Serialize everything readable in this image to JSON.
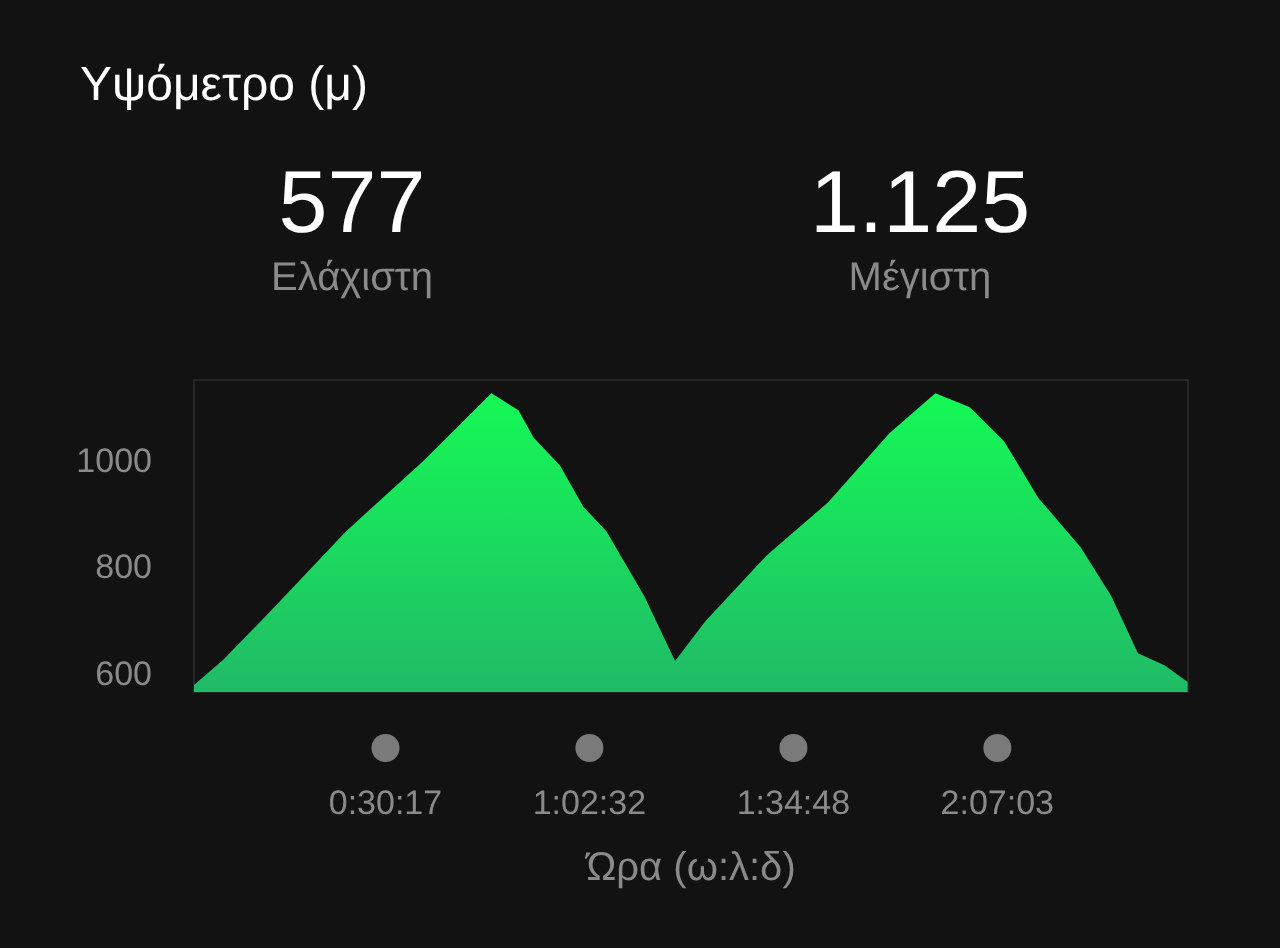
{
  "chart_data": {
    "type": "area",
    "title": "Υψόμετρο (μ)",
    "annotations": [
      "577",
      "Ελάχιστη",
      "1.125",
      "Μέγιστη"
    ],
    "xlabel": "Ώρα (ω:λ:δ)",
    "x": [
      0.0,
      0.078,
      0.199,
      0.401,
      0.603,
      0.784,
      0.855,
      0.895,
      0.965,
      1.026,
      1.087,
      1.187,
      1.268,
      1.349,
      1.51,
      1.671,
      1.833,
      1.954,
      2.045,
      2.135,
      2.226,
      2.337,
      2.418,
      2.488,
      2.559,
      2.619
    ],
    "series": [
      {
        "color": "#12d84a",
        "values": [
          577,
          625,
          714,
          866,
          997,
          1125,
          1093,
          1042,
          989,
          912,
          866,
          744,
          622,
          698,
          821,
          920,
          1050,
          1125,
          1099,
          1035,
          928,
          836,
          744,
          637,
          614,
          583
        ]
      }
    ],
    "xticks": [
      {
        "value": 0.5047,
        "label": "0:30:17"
      },
      {
        "value": 1.0422,
        "label": "1:02:32"
      },
      {
        "value": 1.58,
        "label": "1:34:48"
      },
      {
        "value": 2.1175,
        "label": "2:07:03"
      }
    ],
    "xlim": [
      0,
      2.62
    ],
    "ylim": [
      564,
      1150
    ],
    "yticks": [
      600,
      800,
      1000
    ],
    "grid": false
  }
}
